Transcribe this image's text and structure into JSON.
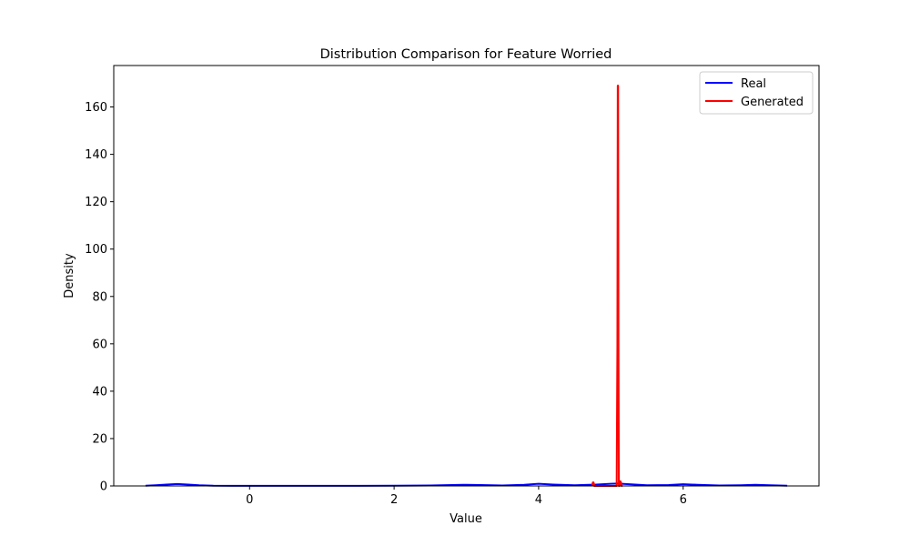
{
  "chart_data": {
    "type": "line",
    "title": "Distribution Comparison for Feature Worried",
    "xlabel": "Value",
    "ylabel": "Density",
    "xlim": [
      -1.88,
      7.88
    ],
    "ylim": [
      0,
      177.5
    ],
    "xticks": [
      0,
      2,
      4,
      6
    ],
    "yticks": [
      0,
      20,
      40,
      60,
      80,
      100,
      120,
      140,
      160
    ],
    "grid": false,
    "legend_position": "top-right",
    "series": [
      {
        "name": "Real",
        "color": "#0000ff",
        "x": [
          -1.44,
          -1.3,
          -1.15,
          -1.0,
          -0.85,
          -0.7,
          -0.5,
          -0.2,
          0.0,
          0.5,
          1.0,
          1.5,
          2.0,
          2.5,
          2.8,
          3.0,
          3.2,
          3.5,
          3.8,
          4.0,
          4.2,
          4.5,
          4.8,
          5.0,
          5.1,
          5.2,
          5.5,
          5.8,
          6.0,
          6.2,
          6.5,
          6.8,
          7.0,
          7.2,
          7.44
        ],
        "y": [
          0.1,
          0.3,
          0.6,
          0.8,
          0.6,
          0.3,
          0.1,
          0.05,
          0.05,
          0.05,
          0.05,
          0.05,
          0.1,
          0.2,
          0.4,
          0.5,
          0.4,
          0.2,
          0.5,
          0.9,
          0.6,
          0.3,
          0.6,
          0.9,
          1.0,
          0.8,
          0.3,
          0.4,
          0.7,
          0.5,
          0.2,
          0.3,
          0.5,
          0.3,
          0.1
        ]
      },
      {
        "name": "Generated",
        "color": "#ff0000",
        "x": [
          4.74,
          4.75,
          4.76,
          4.77,
          4.8,
          5.0,
          5.08,
          5.09,
          5.095,
          5.1,
          5.105,
          5.11,
          5.12,
          5.13,
          5.14,
          5.15,
          5.16
        ],
        "y": [
          0,
          1.5,
          1.5,
          0,
          0,
          0,
          0,
          60,
          169,
          169,
          60,
          0,
          0,
          2,
          1.5,
          0,
          0
        ]
      }
    ]
  }
}
